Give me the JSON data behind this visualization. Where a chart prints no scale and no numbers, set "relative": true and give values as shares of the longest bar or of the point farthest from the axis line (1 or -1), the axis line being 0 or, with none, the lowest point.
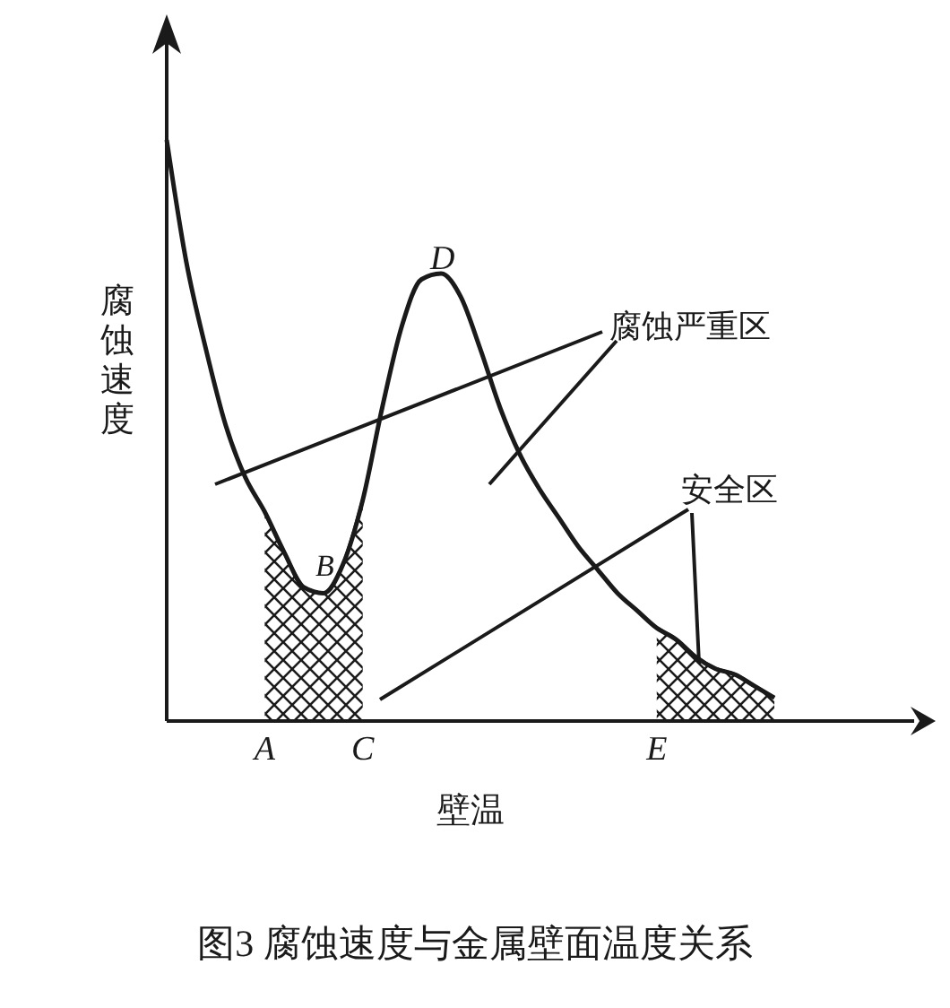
{
  "chart_data": {
    "type": "line",
    "title": "图3 腐蚀速度与金属壁面温度关系",
    "xlabel": "壁温",
    "ylabel": "腐蚀速度",
    "relative": true,
    "categories": [
      null,
      null,
      null,
      null,
      null,
      "A",
      null,
      null,
      null,
      null,
      "C",
      null,
      null,
      null,
      null,
      null,
      null,
      null,
      null,
      null,
      null,
      null,
      null,
      null,
      null,
      "E",
      null,
      null,
      null,
      null,
      null,
      null
    ],
    "series": [
      {
        "color": "#1a1a1a",
        "values": [
          1.0,
          0.79,
          0.64,
          0.51,
          0.42,
          0.36,
          0.29,
          0.23,
          0.22,
          0.27,
          0.38,
          0.54,
          0.68,
          0.76,
          0.77,
          0.73,
          0.64,
          0.54,
          0.46,
          0.4,
          0.35,
          0.3,
          0.26,
          0.22,
          0.19,
          0.16,
          0.14,
          0.11,
          0.09,
          0.08,
          0.06,
          0.04
        ]
      },
      {
        "type": "area",
        "color": "#1a1a1a",
        "values": [
          null,
          null,
          null,
          null,
          null,
          0.36,
          0.29,
          0.23,
          0.22,
          0.27,
          0.38,
          null,
          null,
          null,
          null,
          null,
          null,
          null,
          null,
          null,
          null,
          null,
          null,
          null,
          null,
          0.16,
          0.14,
          0.11,
          0.09,
          0.08,
          0.06,
          0.04
        ]
      }
    ],
    "annotations": [
      "D",
      "B",
      "腐蚀严重区",
      "安全区"
    ]
  }
}
